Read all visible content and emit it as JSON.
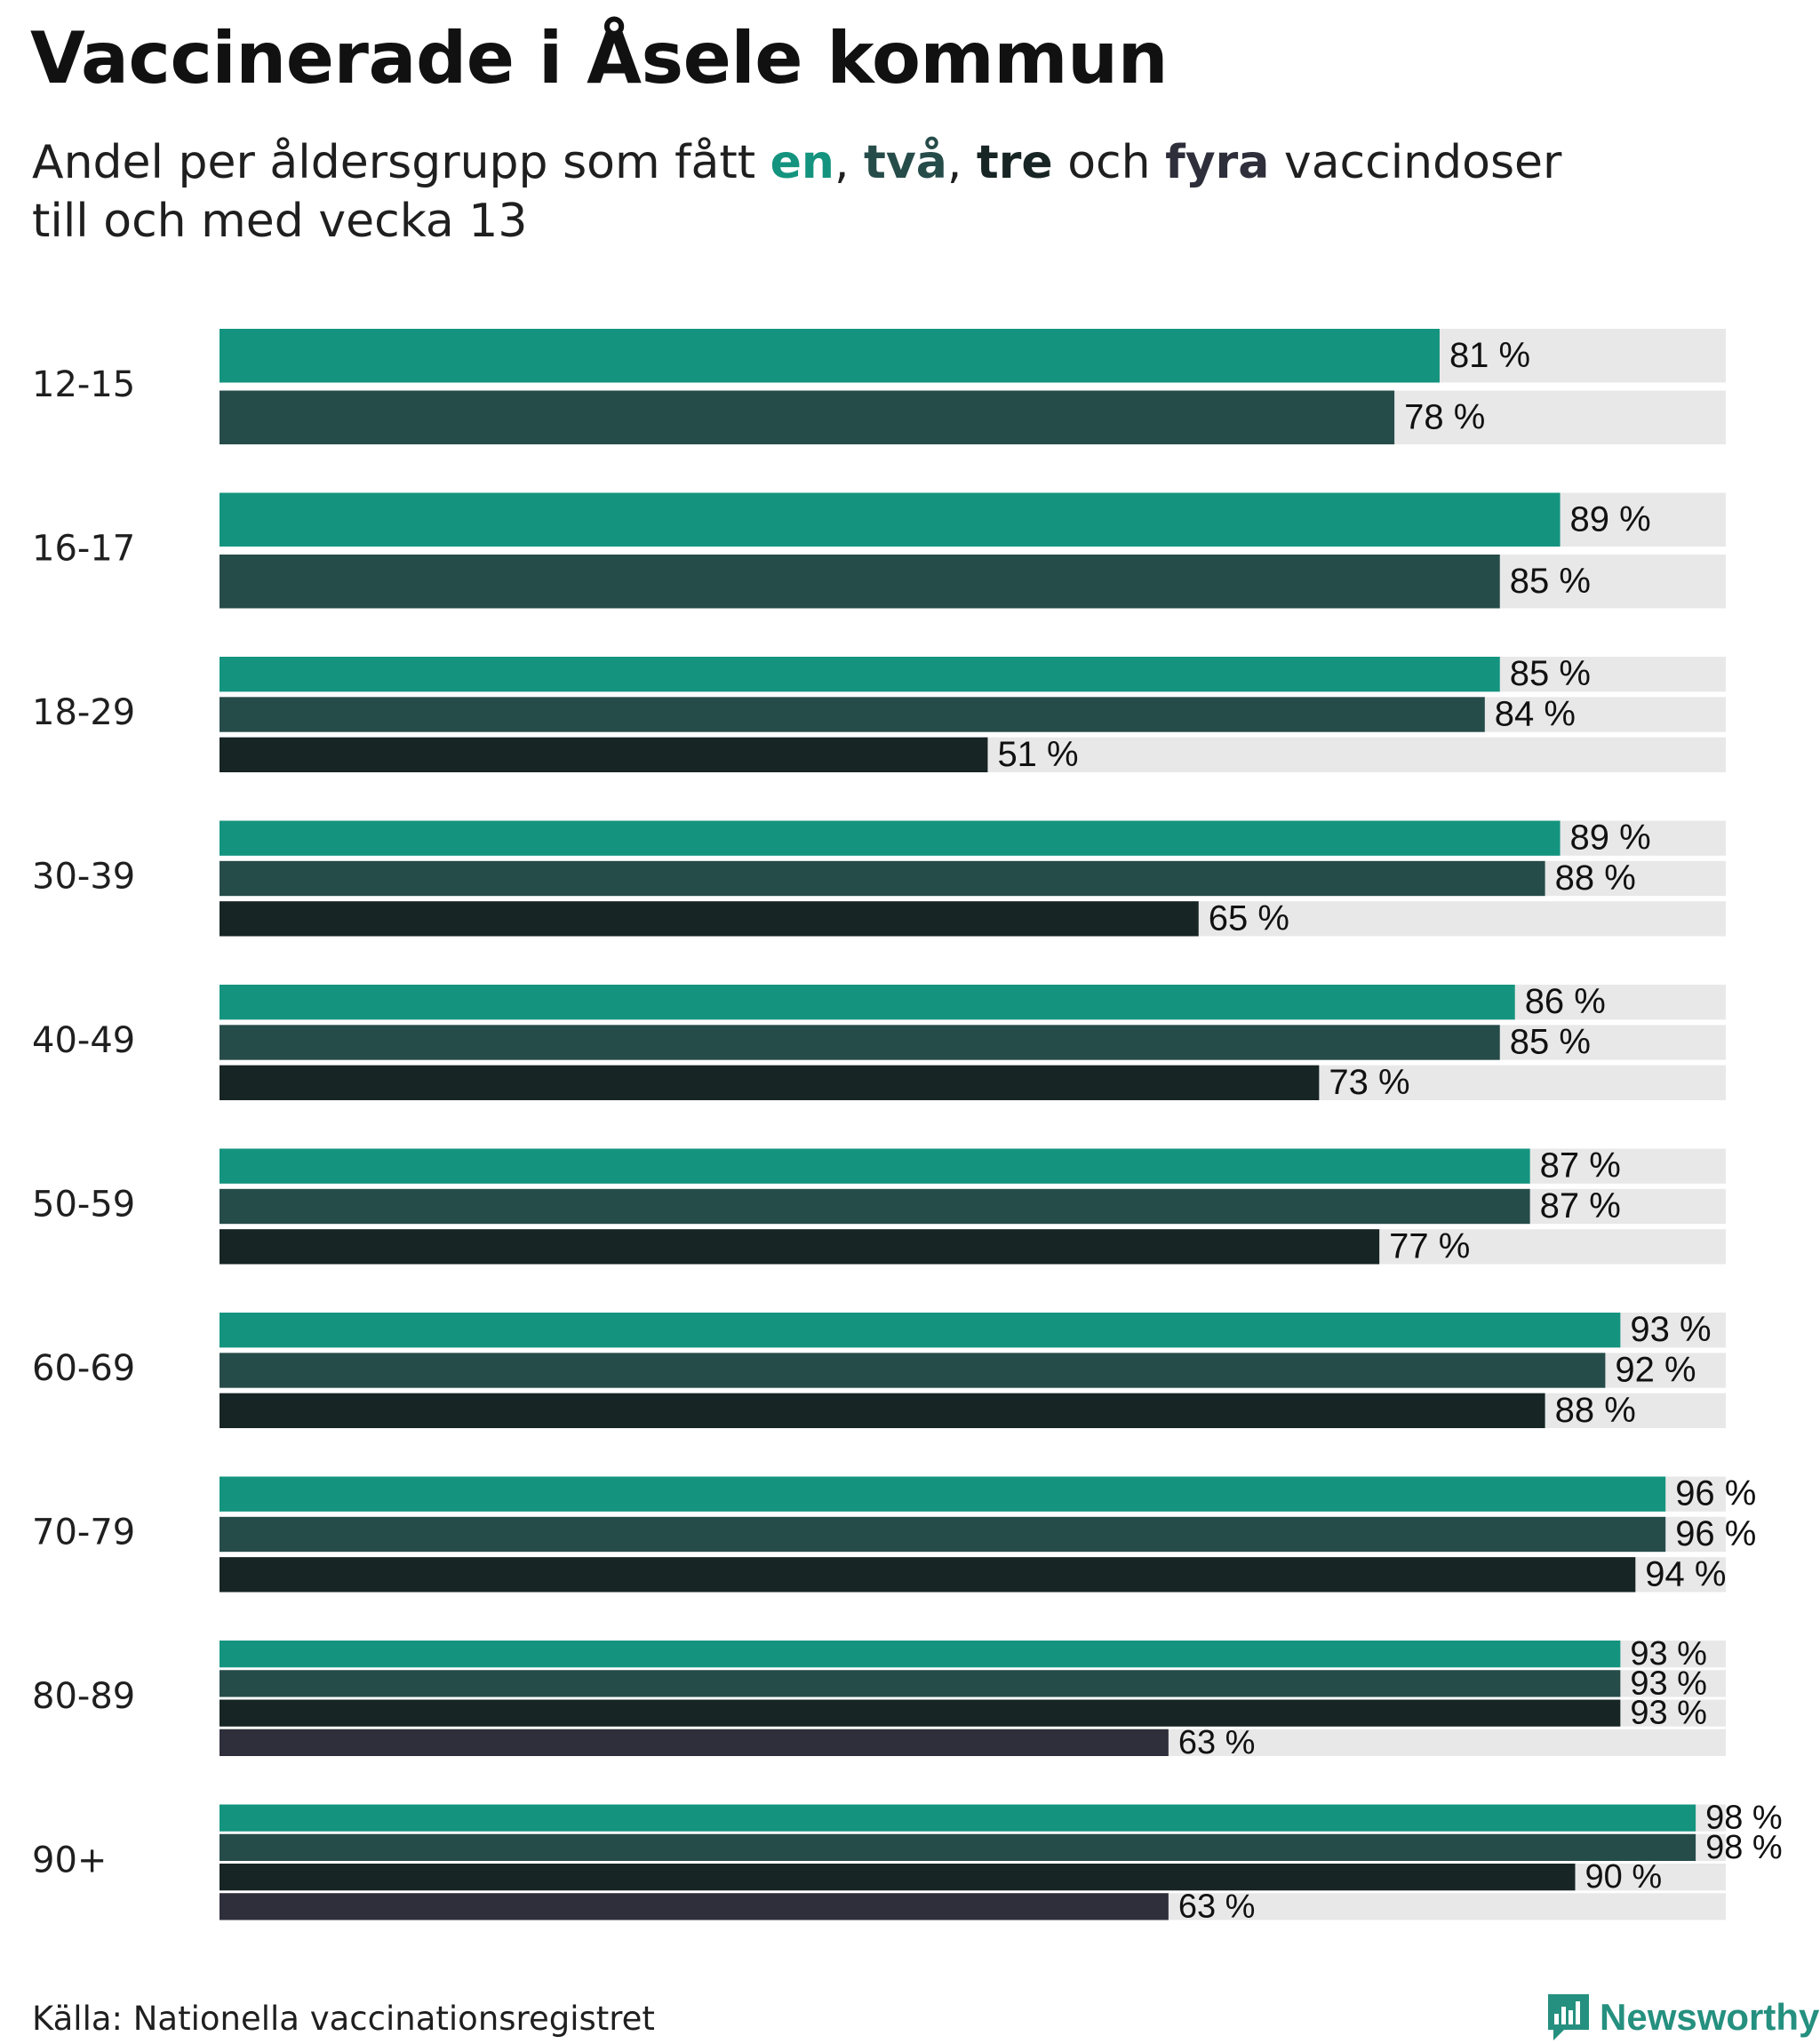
{
  "title": "Vaccinerade i Åsele kommun",
  "subtitle": {
    "part1": "Andel per åldersgrupp som fått ",
    "en": "en",
    "sep1": ", ",
    "tva": "två",
    "sep2": ", ",
    "tre": "tre",
    "och": " och ",
    "fyra": "fyra",
    "part2": " vaccindoser",
    "line2": "till och med vecka 13"
  },
  "colors": {
    "dose1": "#14947f",
    "dose2": "#264c4a",
    "dose3": "#172524",
    "dose4": "#2f2e3b",
    "track": "#e8e8e8"
  },
  "source": "Källa: Nationella vaccinationsregistret",
  "logo": {
    "text": "Newsworthy",
    "icon": "newsworthy-chart-icon"
  },
  "chart_data": {
    "type": "bar",
    "orientation": "horizontal",
    "unit": "%",
    "xlim": [
      0,
      100
    ],
    "grid": false,
    "categories": [
      "12-15",
      "16-17",
      "18-29",
      "30-39",
      "40-49",
      "50-59",
      "60-69",
      "70-79",
      "80-89",
      "90+"
    ],
    "series": [
      {
        "values": [
          81,
          89,
          85,
          89,
          86,
          87,
          93,
          96,
          93,
          98
        ]
      },
      {
        "values": [
          78,
          85,
          84,
          88,
          85,
          87,
          92,
          96,
          93,
          98
        ]
      },
      {
        "values": [
          null,
          null,
          51,
          65,
          73,
          77,
          88,
          94,
          93,
          90
        ]
      },
      {
        "values": [
          null,
          null,
          null,
          null,
          null,
          null,
          null,
          null,
          63,
          63
        ]
      }
    ],
    "labels": [
      [
        "81 %",
        "78 %"
      ],
      [
        "89 %",
        "85 %"
      ],
      [
        "85 %",
        "84 %",
        "51 %"
      ],
      [
        "89 %",
        "88 %",
        "65 %"
      ],
      [
        "86 %",
        "85 %",
        "73 %"
      ],
      [
        "87 %",
        "87 %",
        "77 %"
      ],
      [
        "93 %",
        "92 %",
        "88 %"
      ],
      [
        "96 %",
        "96 %",
        "94 %"
      ],
      [
        "93 %",
        "93 %",
        "93 %",
        "63 %"
      ],
      [
        "98 %",
        "98 %",
        "90 %",
        "63 %"
      ]
    ]
  }
}
